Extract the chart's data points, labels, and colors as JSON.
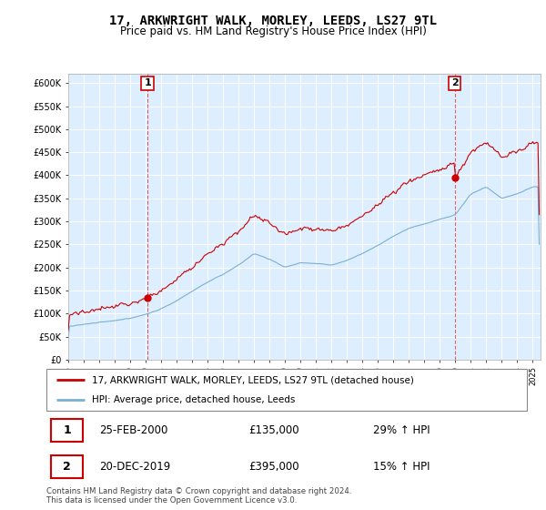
{
  "title": "17, ARKWRIGHT WALK, MORLEY, LEEDS, LS27 9TL",
  "subtitle": "Price paid vs. HM Land Registry's House Price Index (HPI)",
  "title_fontsize": 10,
  "subtitle_fontsize": 8.5,
  "ylim": [
    0,
    620000
  ],
  "yticks": [
    0,
    50000,
    100000,
    150000,
    200000,
    250000,
    300000,
    350000,
    400000,
    450000,
    500000,
    550000,
    600000
  ],
  "ytick_labels": [
    "£0",
    "£50K",
    "£100K",
    "£150K",
    "£200K",
    "£250K",
    "£300K",
    "£350K",
    "£400K",
    "£450K",
    "£500K",
    "£550K",
    "£600K"
  ],
  "xlim_start": 1995.0,
  "xlim_end": 2025.5,
  "plot_bg_color": "#ddeeff",
  "grid_color": "#ffffff",
  "sale1_x": 2000.12,
  "sale1_y": 135000,
  "sale2_x": 2019.96,
  "sale2_y": 395000,
  "sale_color": "#cc0000",
  "hpi_color": "#7ab0d4",
  "property_line_color": "#cc0000",
  "legend_label_property": "17, ARKWRIGHT WALK, MORLEY, LEEDS, LS27 9TL (detached house)",
  "legend_label_hpi": "HPI: Average price, detached house, Leeds",
  "transaction1_date": "25-FEB-2000",
  "transaction1_price": "£135,000",
  "transaction1_hpi": "29% ↑ HPI",
  "transaction2_date": "20-DEC-2019",
  "transaction2_price": "£395,000",
  "transaction2_hpi": "15% ↑ HPI",
  "footer": "Contains HM Land Registry data © Crown copyright and database right 2024.\nThis data is licensed under the Open Government Licence v3.0."
}
